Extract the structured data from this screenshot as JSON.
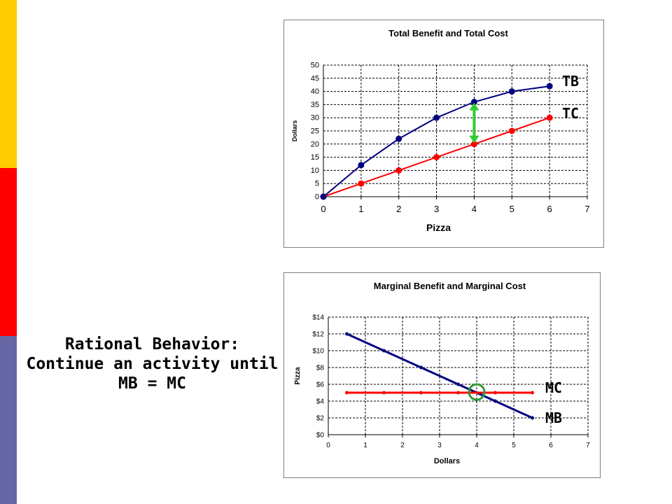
{
  "sidebar": {
    "colors": [
      "#ffcc00",
      "#ff0000",
      "#6666a4"
    ]
  },
  "headline": {
    "line1": "Rational Behavior:",
    "line2": "Continue an activity until",
    "line3": "MB = MC"
  },
  "colors": {
    "tb": "#000080",
    "tc": "#ff0000",
    "mb": "#000080",
    "mc": "#ff0000",
    "arrow": "#33cc33",
    "circle": "#339933"
  },
  "chart_data": [
    {
      "type": "line",
      "title": "Total Benefit and Total Cost",
      "xlabel": "Pizza",
      "ylabel": "Dollars",
      "xlim": [
        0,
        7
      ],
      "ylim": [
        0,
        50
      ],
      "xticks": [
        "0",
        "1",
        "2",
        "3",
        "4",
        "5",
        "6",
        "7"
      ],
      "yticks": [
        "0",
        "5",
        "10",
        "15",
        "20",
        "25",
        "30",
        "35",
        "40",
        "45",
        "50"
      ],
      "grid": true,
      "x": [
        0,
        1,
        2,
        3,
        4,
        5,
        6
      ],
      "series": [
        {
          "name": "TB",
          "values": [
            0,
            12,
            22,
            30,
            36,
            40,
            42
          ]
        },
        {
          "name": "TC",
          "values": [
            0,
            5,
            10,
            15,
            20,
            25,
            30
          ]
        }
      ],
      "annotations": [
        {
          "type": "double-arrow",
          "x": 4,
          "from": 20,
          "to": 36
        }
      ]
    },
    {
      "type": "line",
      "title": "Marginal Benefit and Marginal Cost",
      "xlabel": "Dollars",
      "ylabel": "Pizza",
      "xlim": [
        0,
        7
      ],
      "ylim": [
        0,
        14
      ],
      "xticks": [
        "0",
        "1",
        "2",
        "3",
        "4",
        "5",
        "6",
        "7"
      ],
      "yticks": [
        "$0",
        "$2",
        "$4",
        "$6",
        "$8",
        "$10",
        "$12",
        "$14"
      ],
      "grid": true,
      "x": [
        0.5,
        1.5,
        2.5,
        3.5,
        4.5,
        5.5
      ],
      "series": [
        {
          "name": "MC",
          "values": [
            5,
            5,
            5,
            5,
            5,
            5
          ]
        },
        {
          "name": "MB",
          "values": [
            12,
            10,
            8,
            6,
            4,
            2
          ]
        }
      ],
      "annotations": [
        {
          "type": "circle",
          "x": 4.0,
          "y": 5
        }
      ]
    }
  ]
}
